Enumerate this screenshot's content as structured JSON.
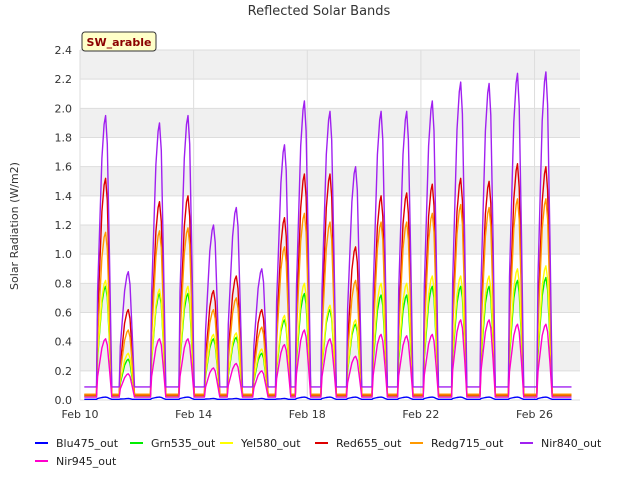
{
  "chart_data": {
    "type": "line",
    "title": "Reflected Solar Bands",
    "ylabel": "Solar Radiation (W/m2)",
    "xlabel": "",
    "station_label": "SW_arable",
    "ylim": [
      0,
      2.4
    ],
    "yticks": [
      "0.0",
      "0.2",
      "0.4",
      "0.6",
      "0.8",
      "1.0",
      "1.2",
      "1.4",
      "1.6",
      "1.8",
      "2.0",
      "2.2",
      "2.4"
    ],
    "xlim_days": [
      10,
      27.6
    ],
    "xticks": [
      {
        "day": 10,
        "label": "Feb 10"
      },
      {
        "day": 14,
        "label": "Feb 14"
      },
      {
        "day": 18,
        "label": "Feb 18"
      },
      {
        "day": 22,
        "label": "Feb 22"
      },
      {
        "day": 26,
        "label": "Feb 26"
      }
    ],
    "grid": true,
    "legend_position": "bottom",
    "daily_peak_days": [
      10.9,
      11.7,
      12.8,
      13.8,
      14.7,
      15.5,
      16.4,
      17.2,
      17.9,
      18.8,
      19.7,
      20.6,
      21.5,
      22.4,
      23.4,
      24.4,
      25.4,
      26.4
    ],
    "series": [
      {
        "name": "Blu475_out",
        "color": "#0000ff",
        "baseline": 0.005,
        "peaks": [
          0.02,
          0.01,
          0.02,
          0.02,
          0.01,
          0.01,
          0.01,
          0.01,
          0.02,
          0.02,
          0.02,
          0.02,
          0.02,
          0.02,
          0.02,
          0.02,
          0.02,
          0.02
        ]
      },
      {
        "name": "Grn535_out",
        "color": "#00ee00",
        "baseline": 0.025,
        "peaks": [
          0.78,
          0.28,
          0.73,
          0.73,
          0.42,
          0.43,
          0.32,
          0.55,
          0.73,
          0.62,
          0.52,
          0.72,
          0.72,
          0.78,
          0.78,
          0.78,
          0.82,
          0.84
        ]
      },
      {
        "name": "Yel580_out",
        "color": "#ffff00",
        "baseline": 0.03,
        "peaks": [
          0.82,
          0.32,
          0.76,
          0.78,
          0.45,
          0.46,
          0.35,
          0.58,
          0.8,
          0.65,
          0.55,
          0.8,
          0.8,
          0.85,
          0.85,
          0.85,
          0.9,
          0.92
        ]
      },
      {
        "name": "Red655_out",
        "color": "#dd0000",
        "baseline": 0.035,
        "peaks": [
          1.52,
          0.62,
          1.36,
          1.4,
          0.75,
          0.85,
          0.62,
          1.25,
          1.55,
          1.55,
          1.05,
          1.4,
          1.42,
          1.48,
          1.52,
          1.5,
          1.62,
          1.6
        ]
      },
      {
        "name": "Redg715_out",
        "color": "#ff9900",
        "baseline": 0.04,
        "peaks": [
          1.15,
          0.48,
          1.16,
          1.18,
          0.62,
          0.7,
          0.5,
          1.05,
          1.28,
          1.22,
          0.82,
          1.22,
          1.22,
          1.28,
          1.34,
          1.32,
          1.38,
          1.38
        ]
      },
      {
        "name": "Nir840_out",
        "color": "#a020f0",
        "baseline": 0.09,
        "peaks": [
          1.95,
          0.88,
          1.9,
          1.95,
          1.2,
          1.32,
          0.9,
          1.75,
          2.05,
          1.98,
          1.6,
          1.98,
          1.98,
          2.05,
          2.18,
          2.17,
          2.24,
          2.25
        ]
      },
      {
        "name": "Nir945_out",
        "color": "#ff00cc",
        "baseline": 0.02,
        "peaks": [
          0.42,
          0.18,
          0.42,
          0.42,
          0.22,
          0.25,
          0.2,
          0.38,
          0.48,
          0.42,
          0.3,
          0.45,
          0.44,
          0.45,
          0.55,
          0.55,
          0.52,
          0.52
        ]
      }
    ]
  }
}
